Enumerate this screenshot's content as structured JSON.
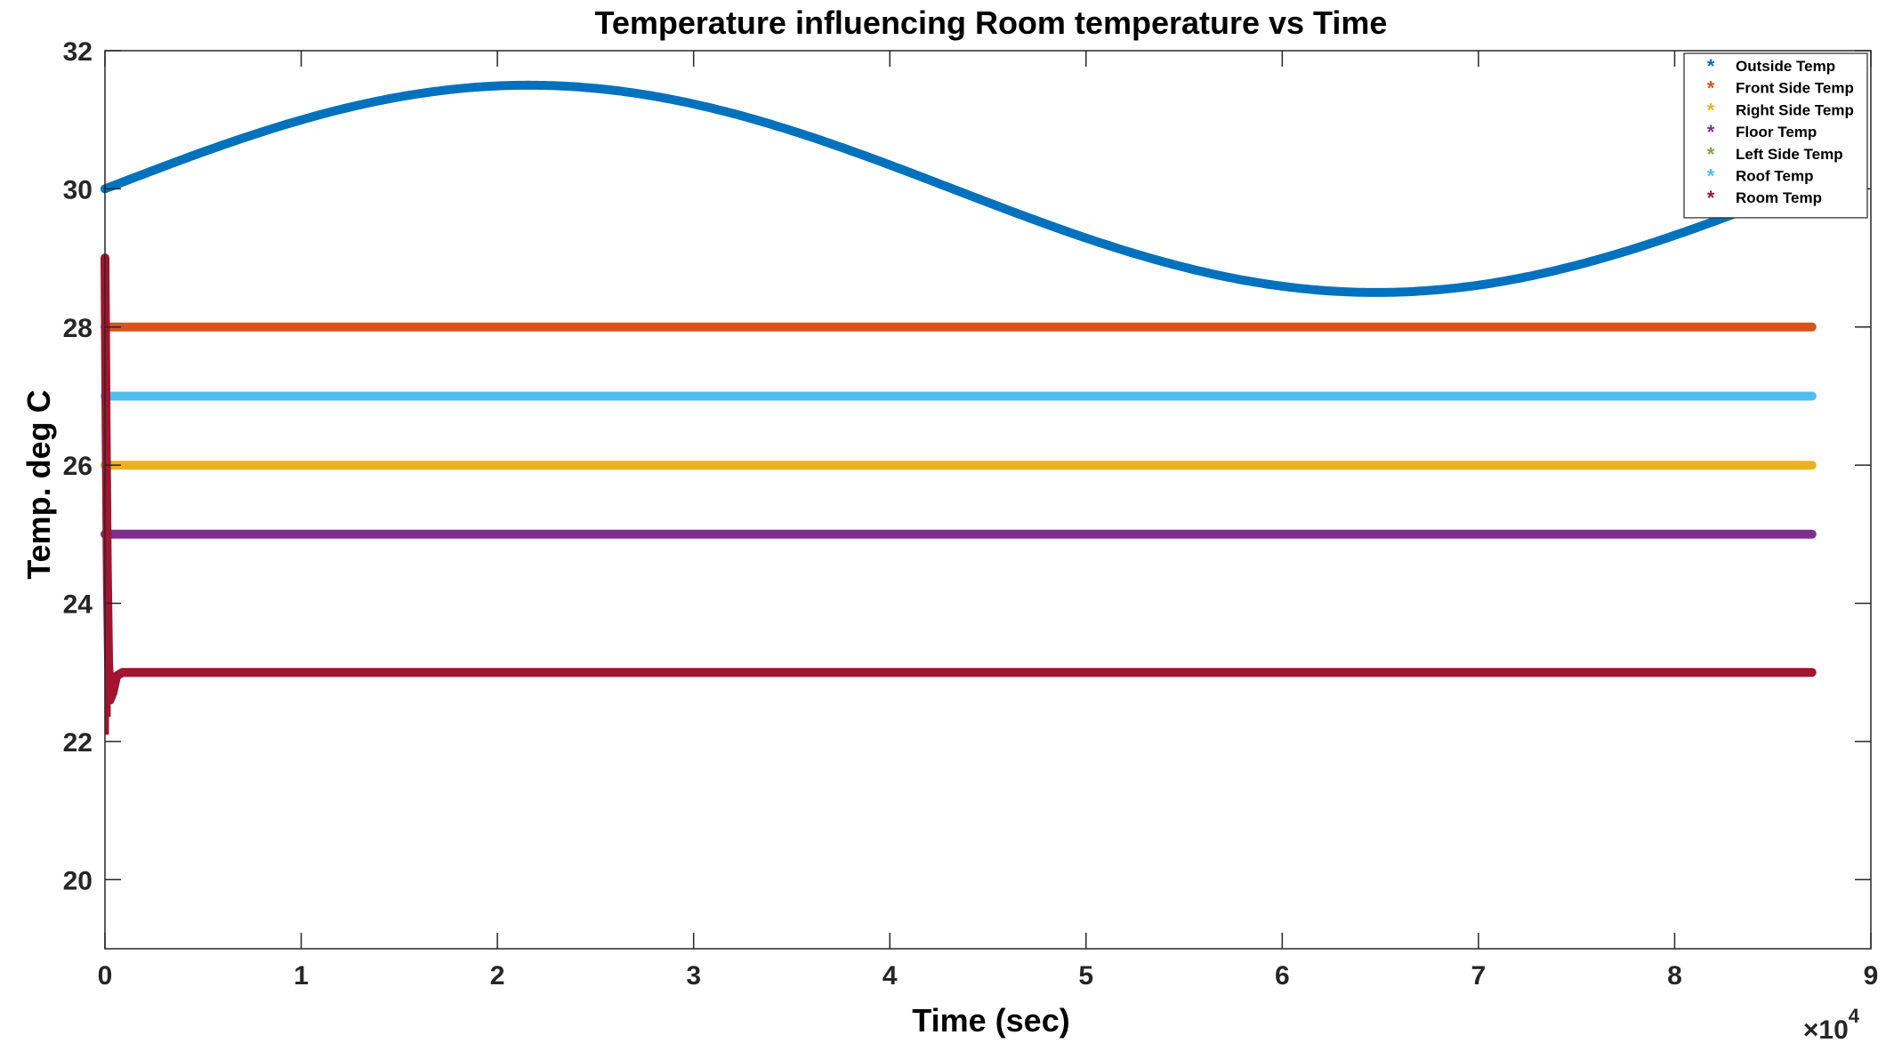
{
  "chart_data": {
    "type": "line",
    "title": "Temperature influencing Room temperature vs Time",
    "xlabel": "Time (sec)",
    "ylabel": "Temp. deg C",
    "xlim": [
      0,
      90000
    ],
    "ylim": [
      19,
      32
    ],
    "x_exponent_label": "×10",
    "x_exponent_power": "4",
    "x_ticks": [
      0,
      10000,
      20000,
      30000,
      40000,
      50000,
      60000,
      70000,
      80000,
      90000
    ],
    "x_tick_labels": [
      "0",
      "1",
      "2",
      "3",
      "4",
      "5",
      "6",
      "7",
      "8",
      "9"
    ],
    "y_ticks": [
      20,
      22,
      24,
      26,
      28,
      30,
      32
    ],
    "y_tick_labels": [
      "20",
      "22",
      "24",
      "26",
      "28",
      "30",
      "32"
    ],
    "grid": false,
    "legend_position": "top-right",
    "marker": "*",
    "series": [
      {
        "name": "Outside Temp",
        "color": "#0072BD",
        "kind": "sine",
        "x_start": 0,
        "x_end": 87000,
        "mean": 30,
        "amplitude": 1.5,
        "period": 86400
      },
      {
        "name": "Front Side Temp",
        "color": "#D95319",
        "kind": "constant",
        "x_start": 0,
        "x_end": 87000,
        "value": 28
      },
      {
        "name": "Right Side Temp",
        "color": "#EDB120",
        "kind": "constant",
        "x_start": 0,
        "x_end": 87000,
        "value": 26
      },
      {
        "name": "Floor Temp",
        "color": "#7E2F8E",
        "kind": "constant",
        "x_start": 0,
        "x_end": 87000,
        "value": 25
      },
      {
        "name": "Left Side Temp",
        "color": "#77AC30",
        "kind": "constant",
        "x_start": 0,
        "x_end": 87000,
        "value": 27
      },
      {
        "name": "Roof Temp",
        "color": "#4DBEEE",
        "kind": "constant",
        "x_start": 0,
        "x_end": 87000,
        "value": 27
      },
      {
        "name": "Room Temp",
        "color": "#A2142F",
        "kind": "transient",
        "x_start": 0,
        "x_end": 87000,
        "initial": 29,
        "dip": 22.5,
        "steady": 23,
        "transient_points": [
          [
            0,
            29
          ],
          [
            60,
            26.5
          ],
          [
            120,
            24.5
          ],
          [
            180,
            23.2
          ],
          [
            260,
            22.6
          ],
          [
            400,
            22.7
          ],
          [
            600,
            22.95
          ],
          [
            900,
            23
          ],
          [
            87000,
            23
          ]
        ]
      }
    ]
  }
}
